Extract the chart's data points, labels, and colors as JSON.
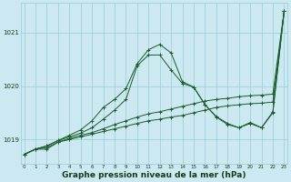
{
  "bg_color": "#cce8f0",
  "grid_color": "#99ccd9",
  "line_color": "#1a5c2a",
  "xlabel": "Graphe pression niveau de la mer (hPa)",
  "xlabel_fontsize": 6.5,
  "xticks": [
    0,
    1,
    2,
    3,
    4,
    5,
    6,
    7,
    8,
    9,
    10,
    11,
    12,
    13,
    14,
    15,
    16,
    17,
    18,
    19,
    20,
    21,
    22,
    23
  ],
  "yticks": [
    1019,
    1020,
    1021
  ],
  "ylim": [
    1018.55,
    1021.55
  ],
  "xlim": [
    -0.3,
    23.3
  ],
  "series": [
    [
      1018.72,
      1018.82,
      1018.82,
      1018.95,
      1019.0,
      1019.05,
      1019.1,
      1019.15,
      1019.2,
      1019.25,
      1019.3,
      1019.35,
      1019.38,
      1019.42,
      1019.45,
      1019.5,
      1019.55,
      1019.6,
      1019.63,
      1019.65,
      1019.67,
      1019.68,
      1019.7,
      1021.4
    ],
    [
      1018.72,
      1018.82,
      1018.85,
      1018.95,
      1019.02,
      1019.08,
      1019.13,
      1019.2,
      1019.28,
      1019.35,
      1019.42,
      1019.48,
      1019.52,
      1019.57,
      1019.62,
      1019.67,
      1019.72,
      1019.75,
      1019.77,
      1019.8,
      1019.82,
      1019.83,
      1019.85,
      1021.4
    ],
    [
      1018.72,
      1018.82,
      1018.88,
      1018.98,
      1019.05,
      1019.12,
      1019.22,
      1019.38,
      1019.55,
      1019.75,
      1020.38,
      1020.58,
      1020.58,
      1020.3,
      1020.05,
      1019.98,
      1019.65,
      1019.43,
      1019.3,
      1019.22,
      1019.32,
      1019.22,
      1019.5,
      1021.4
    ],
    [
      1018.72,
      1018.82,
      1018.88,
      1018.98,
      1019.08,
      1019.18,
      1019.35,
      1019.6,
      1019.75,
      1019.95,
      1020.42,
      1020.68,
      1020.78,
      1020.62,
      1020.08,
      1019.98,
      1019.65,
      1019.42,
      1019.28,
      1019.22,
      1019.3,
      1019.22,
      1019.52,
      1021.4
    ]
  ]
}
